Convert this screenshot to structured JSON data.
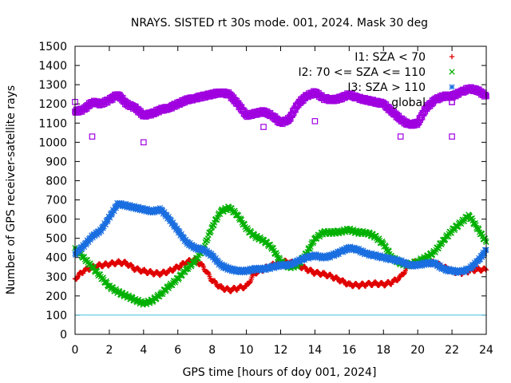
{
  "chart_data": {
    "type": "scatter",
    "title": "NRAYS. SISTED rt 30s mode. 001, 2024. Mask 30 deg",
    "xlabel": "GPS time [hours of doy 001, 2024]",
    "ylabel": "Number of GPS receiver-satellite rays",
    "xlim": [
      0,
      24
    ],
    "ylim": [
      0,
      1500
    ],
    "xticks": [
      0,
      2,
      4,
      6,
      8,
      10,
      12,
      14,
      16,
      18,
      20,
      22,
      24
    ],
    "yticks": [
      0,
      100,
      200,
      300,
      400,
      500,
      600,
      700,
      800,
      900,
      1000,
      1100,
      1200,
      1300,
      1400,
      1500
    ],
    "grid": false,
    "legend_position": "top-right",
    "reference_line": {
      "y": 100,
      "color": "#40c0e0"
    },
    "series": [
      {
        "name": "I1: SZA < 70",
        "color": "#e00000",
        "marker": "plus",
        "points": [
          [
            0.0,
            290
          ],
          [
            0.5,
            330
          ],
          [
            1.0,
            350
          ],
          [
            1.5,
            360
          ],
          [
            2.0,
            365
          ],
          [
            2.5,
            375
          ],
          [
            3.0,
            370
          ],
          [
            3.5,
            340
          ],
          [
            4.0,
            330
          ],
          [
            4.5,
            320
          ],
          [
            5.0,
            315
          ],
          [
            5.5,
            330
          ],
          [
            6.0,
            350
          ],
          [
            6.5,
            375
          ],
          [
            7.0,
            390
          ],
          [
            7.5,
            350
          ],
          [
            8.0,
            280
          ],
          [
            8.5,
            245
          ],
          [
            9.0,
            230
          ],
          [
            9.5,
            240
          ],
          [
            10.0,
            250
          ],
          [
            10.5,
            320
          ],
          [
            11.0,
            340
          ],
          [
            11.5,
            360
          ],
          [
            12.0,
            380
          ],
          [
            12.5,
            375
          ],
          [
            13.0,
            360
          ],
          [
            13.5,
            340
          ],
          [
            14.0,
            320
          ],
          [
            14.5,
            315
          ],
          [
            15.0,
            300
          ],
          [
            15.5,
            280
          ],
          [
            16.0,
            260
          ],
          [
            16.5,
            255
          ],
          [
            17.0,
            260
          ],
          [
            17.5,
            265
          ],
          [
            18.0,
            260
          ],
          [
            18.5,
            270
          ],
          [
            19.0,
            300
          ],
          [
            19.5,
            360
          ],
          [
            20.0,
            380
          ],
          [
            20.5,
            375
          ],
          [
            21.0,
            370
          ],
          [
            21.5,
            350
          ],
          [
            22.0,
            330
          ],
          [
            22.5,
            320
          ],
          [
            23.0,
            330
          ],
          [
            23.5,
            340
          ],
          [
            24.0,
            335
          ]
        ]
      },
      {
        "name": "I2: 70 <= SZA <= 110",
        "color": "#00b000",
        "marker": "cross",
        "points": [
          [
            0.0,
            450
          ],
          [
            0.5,
            400
          ],
          [
            1.0,
            350
          ],
          [
            1.5,
            300
          ],
          [
            2.0,
            250
          ],
          [
            2.5,
            220
          ],
          [
            3.0,
            200
          ],
          [
            3.5,
            180
          ],
          [
            4.0,
            160
          ],
          [
            4.5,
            175
          ],
          [
            5.0,
            210
          ],
          [
            5.5,
            250
          ],
          [
            6.0,
            290
          ],
          [
            6.5,
            340
          ],
          [
            7.0,
            380
          ],
          [
            7.5,
            450
          ],
          [
            8.0,
            560
          ],
          [
            8.5,
            640
          ],
          [
            9.0,
            660
          ],
          [
            9.5,
            620
          ],
          [
            10.0,
            550
          ],
          [
            10.5,
            510
          ],
          [
            11.0,
            490
          ],
          [
            11.5,
            450
          ],
          [
            12.0,
            380
          ],
          [
            12.5,
            350
          ],
          [
            13.0,
            360
          ],
          [
            13.5,
            420
          ],
          [
            14.0,
            500
          ],
          [
            14.5,
            530
          ],
          [
            15.0,
            530
          ],
          [
            15.5,
            535
          ],
          [
            16.0,
            545
          ],
          [
            16.5,
            530
          ],
          [
            17.0,
            530
          ],
          [
            17.5,
            510
          ],
          [
            18.0,
            470
          ],
          [
            18.5,
            400
          ],
          [
            19.0,
            370
          ],
          [
            19.5,
            360
          ],
          [
            20.0,
            380
          ],
          [
            20.5,
            400
          ],
          [
            21.0,
            430
          ],
          [
            21.5,
            490
          ],
          [
            22.0,
            540
          ],
          [
            22.5,
            580
          ],
          [
            23.0,
            620
          ],
          [
            23.5,
            550
          ],
          [
            24.0,
            480
          ]
        ]
      },
      {
        "name": "I3: SZA > 110",
        "color": "#1a6ee0",
        "marker": "star",
        "points": [
          [
            0.0,
            420
          ],
          [
            0.5,
            460
          ],
          [
            1.0,
            510
          ],
          [
            1.5,
            540
          ],
          [
            2.0,
            610
          ],
          [
            2.5,
            680
          ],
          [
            3.0,
            670
          ],
          [
            3.5,
            660
          ],
          [
            4.0,
            650
          ],
          [
            4.5,
            640
          ],
          [
            5.0,
            650
          ],
          [
            5.5,
            600
          ],
          [
            6.0,
            540
          ],
          [
            6.5,
            480
          ],
          [
            7.0,
            450
          ],
          [
            7.5,
            440
          ],
          [
            8.0,
            410
          ],
          [
            8.5,
            360
          ],
          [
            9.0,
            340
          ],
          [
            9.5,
            330
          ],
          [
            10.0,
            330
          ],
          [
            10.5,
            340
          ],
          [
            11.0,
            340
          ],
          [
            11.5,
            350
          ],
          [
            12.0,
            360
          ],
          [
            12.5,
            360
          ],
          [
            13.0,
            380
          ],
          [
            13.5,
            400
          ],
          [
            14.0,
            410
          ],
          [
            14.5,
            400
          ],
          [
            15.0,
            410
          ],
          [
            15.5,
            430
          ],
          [
            16.0,
            450
          ],
          [
            16.5,
            440
          ],
          [
            17.0,
            420
          ],
          [
            17.5,
            410
          ],
          [
            18.0,
            400
          ],
          [
            18.5,
            390
          ],
          [
            19.0,
            380
          ],
          [
            19.5,
            360
          ],
          [
            20.0,
            360
          ],
          [
            20.5,
            370
          ],
          [
            21.0,
            370
          ],
          [
            21.5,
            340
          ],
          [
            22.0,
            330
          ],
          [
            22.5,
            325
          ],
          [
            23.0,
            340
          ],
          [
            23.5,
            380
          ],
          [
            24.0,
            440
          ]
        ]
      },
      {
        "name": "global",
        "color": "#a000e0",
        "marker": "square",
        "points": [
          [
            0.0,
            1160
          ],
          [
            0.5,
            1170
          ],
          [
            1.0,
            1210
          ],
          [
            1.5,
            1200
          ],
          [
            2.0,
            1220
          ],
          [
            2.5,
            1250
          ],
          [
            3.0,
            1200
          ],
          [
            3.5,
            1180
          ],
          [
            4.0,
            1140
          ],
          [
            4.5,
            1150
          ],
          [
            5.0,
            1170
          ],
          [
            5.5,
            1180
          ],
          [
            6.0,
            1200
          ],
          [
            6.5,
            1220
          ],
          [
            7.0,
            1230
          ],
          [
            7.5,
            1240
          ],
          [
            8.0,
            1250
          ],
          [
            8.5,
            1260
          ],
          [
            9.0,
            1250
          ],
          [
            9.5,
            1200
          ],
          [
            10.0,
            1140
          ],
          [
            10.5,
            1150
          ],
          [
            11.0,
            1160
          ],
          [
            11.5,
            1140
          ],
          [
            12.0,
            1100
          ],
          [
            12.5,
            1120
          ],
          [
            13.0,
            1200
          ],
          [
            13.5,
            1240
          ],
          [
            14.0,
            1260
          ],
          [
            14.5,
            1230
          ],
          [
            15.0,
            1220
          ],
          [
            15.5,
            1230
          ],
          [
            16.0,
            1250
          ],
          [
            16.5,
            1230
          ],
          [
            17.0,
            1220
          ],
          [
            17.5,
            1210
          ],
          [
            18.0,
            1200
          ],
          [
            18.5,
            1160
          ],
          [
            19.0,
            1120
          ],
          [
            19.5,
            1090
          ],
          [
            20.0,
            1100
          ],
          [
            20.5,
            1180
          ],
          [
            21.0,
            1220
          ],
          [
            21.5,
            1240
          ],
          [
            22.0,
            1240
          ],
          [
            22.5,
            1260
          ],
          [
            23.0,
            1280
          ],
          [
            23.5,
            1270
          ],
          [
            24.0,
            1240
          ]
        ],
        "outliers": [
          [
            0.0,
            1210
          ],
          [
            1.0,
            1030
          ],
          [
            4.0,
            1000
          ],
          [
            11.0,
            1080
          ],
          [
            14.0,
            1110
          ],
          [
            19.0,
            1030
          ],
          [
            22.0,
            1030
          ],
          [
            22.0,
            1210
          ]
        ]
      }
    ]
  }
}
